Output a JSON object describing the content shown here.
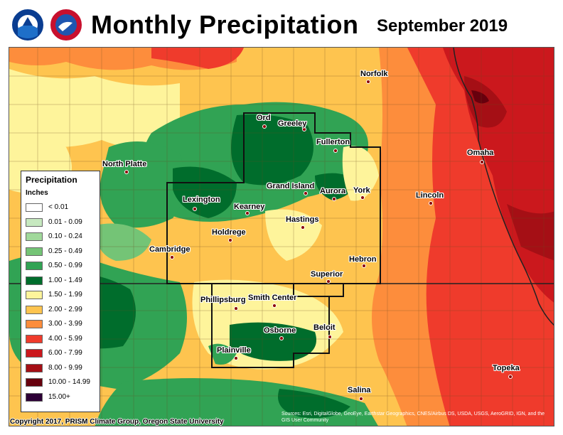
{
  "header": {
    "title": "Monthly Precipitation",
    "date": "September 2019"
  },
  "legend": {
    "title": "Precipitation",
    "units": "Inches",
    "items": [
      {
        "label": "< 0.01",
        "color": "#ffffff"
      },
      {
        "label": "0.01 - 0.09",
        "color": "#c7e9c0"
      },
      {
        "label": "0.10 - 0.24",
        "color": "#a1d99b"
      },
      {
        "label": "0.25 - 0.49",
        "color": "#74c476"
      },
      {
        "label": "0.50 - 0.99",
        "color": "#31a354"
      },
      {
        "label": "1.00 - 1.49",
        "color": "#006d2c"
      },
      {
        "label": "1.50 - 1.99",
        "color": "#fef49b"
      },
      {
        "label": "2.00 - 2.99",
        "color": "#fec44f"
      },
      {
        "label": "3.00 - 3.99",
        "color": "#fd8d3c"
      },
      {
        "label": "4.00 - 5.99",
        "color": "#ef3b2c"
      },
      {
        "label": "6.00 - 7.99",
        "color": "#cb181d"
      },
      {
        "label": "8.00 - 9.99",
        "color": "#a50f15"
      },
      {
        "label": "10.00 - 14.99",
        "color": "#67000d"
      },
      {
        "label": "15.00+",
        "color": "#2d0036"
      }
    ]
  },
  "cities": [
    {
      "name": "Norfolk"
    },
    {
      "name": "Ord"
    },
    {
      "name": "Greeley"
    },
    {
      "name": "Fullerton"
    },
    {
      "name": "North Platte"
    },
    {
      "name": "Omaha"
    },
    {
      "name": "Grand Island"
    },
    {
      "name": "Aurora"
    },
    {
      "name": "York"
    },
    {
      "name": "Lexington"
    },
    {
      "name": "Kearney"
    },
    {
      "name": "Lincoln"
    },
    {
      "name": "Hastings"
    },
    {
      "name": "Holdrege"
    },
    {
      "name": "Cambridge"
    },
    {
      "name": "Hebron"
    },
    {
      "name": "Superior"
    },
    {
      "name": "Phillipsburg"
    },
    {
      "name": "Smith Center"
    },
    {
      "name": "Osborne"
    },
    {
      "name": "Beloit"
    },
    {
      "name": "Plainville"
    },
    {
      "name": "Topeka"
    },
    {
      "name": "Salina"
    }
  ],
  "footer": {
    "copyright": "Copyright 2017, PRISM Climate Group, Oregon State University",
    "sources": "Sources: Esri, DigitalGlobe, GeoEye, Earthstar Geographics, CNES/Airbus DS, USDA, USGS, AeroGRID, IGN, and the GIS User Community"
  },
  "colors": {
    "dark_green": "#006d2c",
    "green": "#31a354",
    "light_green": "#74c476",
    "yellow": "#fef49b",
    "orange_light": "#fec44f",
    "orange": "#fd8d3c",
    "red": "#ef3b2c",
    "dark_red": "#cb181d",
    "maroon": "#a50f15"
  }
}
